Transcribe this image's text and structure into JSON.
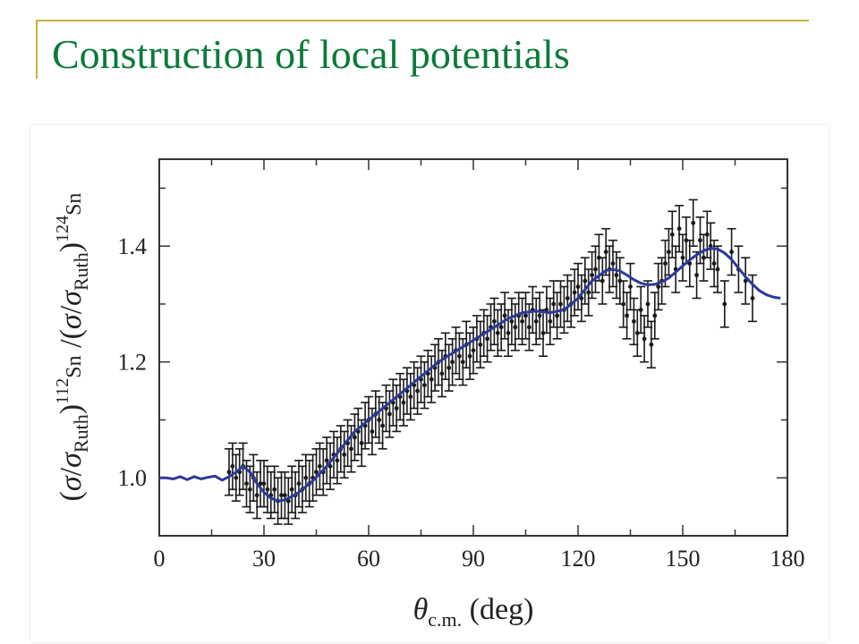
{
  "slide": {
    "title": "Construction of local potentials"
  },
  "colors": {
    "title": "#0b7a3a",
    "accent_line": "#c8b23f",
    "curve": "#2b3a9a",
    "points": "#1a1a1a"
  },
  "chart_data": {
    "type": "scatter",
    "title": "",
    "xlabel": "θc.m. (deg)",
    "ylabel": "(σ/σRuth)112Sn /(σ/σRuth)124Sn",
    "xlim": [
      0,
      180
    ],
    "ylim": [
      0.9,
      1.55
    ],
    "xticks": [
      0,
      30,
      60,
      90,
      120,
      150,
      180
    ],
    "yticks": [
      1.0,
      1.2,
      1.4
    ],
    "ytick_labels": [
      "1.0",
      "1.2",
      "1.4"
    ],
    "grid": false,
    "series": [
      {
        "kind": "curve",
        "color": "#2b3a9a",
        "x": [
          0,
          2,
          4,
          6,
          8,
          10,
          12,
          14,
          16,
          18,
          20,
          22,
          24,
          26,
          28,
          30,
          32,
          34,
          36,
          38,
          40,
          44,
          48,
          52,
          56,
          60,
          64,
          68,
          72,
          76,
          80,
          84,
          88,
          92,
          96,
          100,
          104,
          108,
          112,
          116,
          120,
          124,
          128,
          130,
          132,
          134,
          136,
          138,
          140,
          142,
          144,
          146,
          148,
          150,
          152,
          154,
          156,
          158,
          160,
          162,
          164,
          166,
          168,
          170,
          172,
          174,
          176,
          178
        ],
        "y": [
          1.0,
          1.0,
          0.998,
          1.002,
          0.997,
          1.002,
          0.998,
          1.001,
          1.003,
          0.996,
          1.002,
          1.01,
          1.02,
          1.01,
          0.99,
          0.975,
          0.965,
          0.96,
          0.962,
          0.968,
          0.975,
          0.995,
          1.02,
          1.05,
          1.08,
          1.1,
          1.12,
          1.14,
          1.16,
          1.18,
          1.2,
          1.215,
          1.23,
          1.245,
          1.26,
          1.275,
          1.285,
          1.288,
          1.285,
          1.29,
          1.31,
          1.34,
          1.358,
          1.36,
          1.357,
          1.35,
          1.342,
          1.336,
          1.333,
          1.334,
          1.338,
          1.345,
          1.355,
          1.366,
          1.376,
          1.385,
          1.392,
          1.396,
          1.395,
          1.388,
          1.377,
          1.362,
          1.347,
          1.334,
          1.323,
          1.316,
          1.312,
          1.31
        ]
      },
      {
        "kind": "points_with_errors",
        "color": "#1a1a1a",
        "err": 0.04,
        "x": [
          20,
          21,
          22,
          23,
          24,
          25,
          26,
          27,
          28,
          29,
          30,
          31,
          32,
          33,
          34,
          35,
          36,
          37,
          38,
          39,
          40,
          41,
          42,
          43,
          44,
          45,
          46,
          47,
          48,
          49,
          50,
          51,
          52,
          53,
          54,
          55,
          56,
          57,
          58,
          59,
          60,
          61,
          62,
          63,
          64,
          65,
          66,
          67,
          68,
          69,
          70,
          71,
          72,
          73,
          74,
          75,
          76,
          77,
          78,
          79,
          80,
          81,
          82,
          83,
          84,
          85,
          86,
          87,
          88,
          89,
          90,
          91,
          92,
          93,
          94,
          95,
          96,
          97,
          98,
          99,
          100,
          101,
          102,
          103,
          104,
          105,
          106,
          107,
          108,
          109,
          110,
          111,
          112,
          113,
          114,
          115,
          116,
          117,
          118,
          119,
          120,
          121,
          122,
          123,
          124,
          125,
          126,
          127,
          128,
          129,
          130,
          131,
          132,
          133,
          134,
          135,
          136,
          137,
          138,
          139,
          140,
          141,
          142,
          143,
          144,
          145,
          146,
          147,
          148,
          149,
          150,
          151,
          152,
          153,
          154,
          155,
          156,
          157,
          158,
          159,
          160,
          162,
          164,
          166,
          168,
          170
        ],
        "y": [
          1.01,
          1.02,
          1.0,
          1.01,
          1.02,
          0.99,
          0.98,
          1.0,
          0.97,
          0.99,
          0.99,
          0.98,
          0.97,
          0.98,
          0.96,
          0.97,
          0.97,
          0.96,
          0.98,
          0.97,
          0.99,
          0.98,
          1.0,
          0.99,
          1.0,
          1.01,
          1.02,
          1.01,
          1.03,
          1.02,
          1.04,
          1.03,
          1.05,
          1.04,
          1.06,
          1.05,
          1.07,
          1.08,
          1.06,
          1.09,
          1.1,
          1.08,
          1.11,
          1.1,
          1.09,
          1.12,
          1.11,
          1.13,
          1.12,
          1.14,
          1.13,
          1.15,
          1.14,
          1.16,
          1.15,
          1.17,
          1.16,
          1.18,
          1.17,
          1.19,
          1.2,
          1.18,
          1.21,
          1.19,
          1.2,
          1.22,
          1.21,
          1.2,
          1.23,
          1.21,
          1.22,
          1.24,
          1.23,
          1.25,
          1.24,
          1.26,
          1.27,
          1.25,
          1.26,
          1.28,
          1.25,
          1.27,
          1.26,
          1.28,
          1.27,
          1.28,
          1.26,
          1.29,
          1.27,
          1.28,
          1.25,
          1.29,
          1.27,
          1.3,
          1.28,
          1.3,
          1.29,
          1.31,
          1.3,
          1.32,
          1.33,
          1.31,
          1.34,
          1.32,
          1.35,
          1.36,
          1.38,
          1.34,
          1.39,
          1.36,
          1.37,
          1.35,
          1.34,
          1.3,
          1.28,
          1.33,
          1.27,
          1.25,
          1.29,
          1.24,
          1.3,
          1.23,
          1.28,
          1.33,
          1.34,
          1.37,
          1.39,
          1.42,
          1.36,
          1.43,
          1.38,
          1.41,
          1.37,
          1.44,
          1.35,
          1.41,
          1.38,
          1.42,
          1.4,
          1.37,
          1.36,
          1.3,
          1.39,
          1.36,
          1.34,
          1.31
        ]
      }
    ]
  }
}
